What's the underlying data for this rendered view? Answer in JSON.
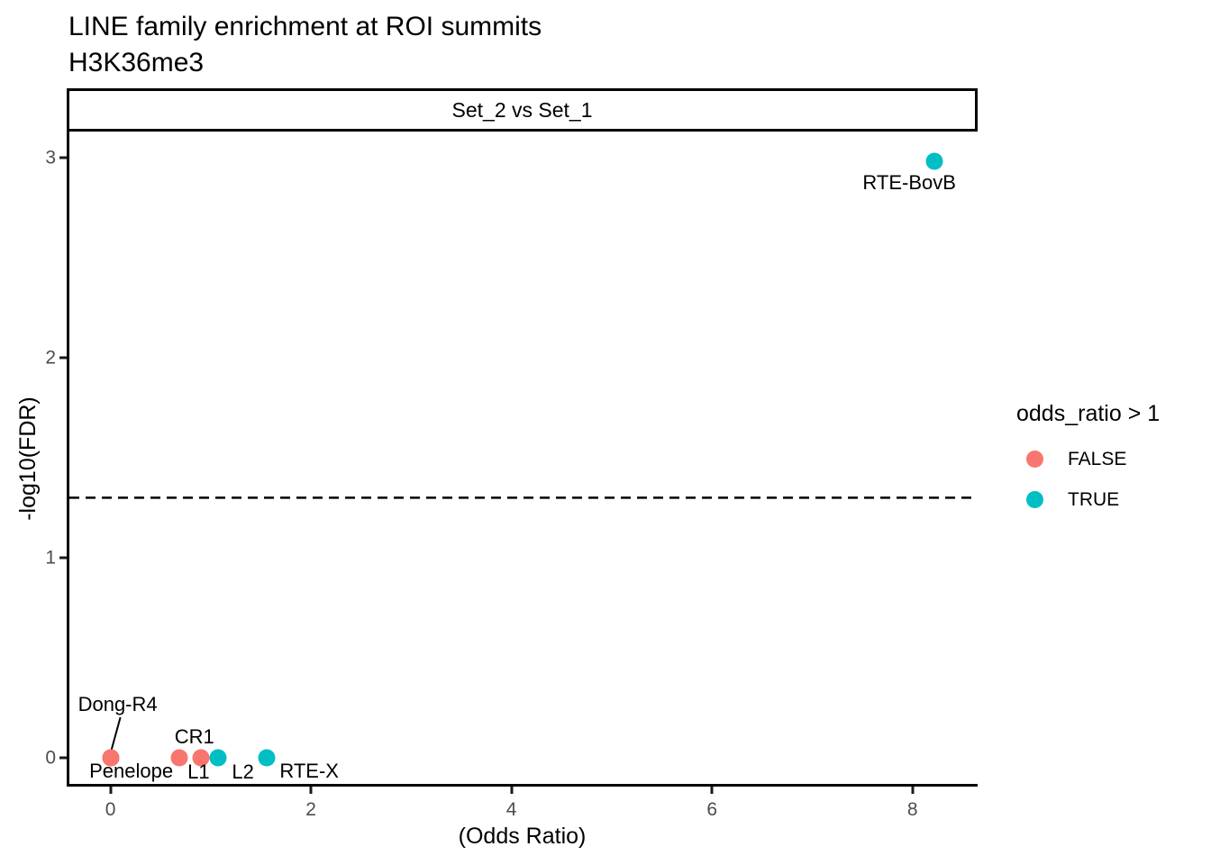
{
  "title": "LINE family enrichment at ROI summits",
  "subtitle": "H3K36me3",
  "facet_label": "Set_2 vs Set_1",
  "legend": {
    "title": "odds_ratio > 1",
    "items": [
      {
        "label": "FALSE",
        "color": "#F8766D"
      },
      {
        "label": "TRUE",
        "color": "#00BFC4"
      }
    ]
  },
  "axis": {
    "x_title": "(Odds Ratio)",
    "y_title": "-log10(FDR)",
    "tick_label_color": "#4D4D4D",
    "line_color": "#000000"
  },
  "chart_data": {
    "type": "scatter",
    "title": "LINE family enrichment at ROI summits",
    "subtitle": "H3K36me3",
    "facet": "Set_2 vs Set_1",
    "xlabel": "(Odds Ratio)",
    "ylabel": "-log10(FDR)",
    "xlim": [
      -0.41,
      8.65
    ],
    "ylim": [
      -0.13,
      3.13
    ],
    "x_ticks": [
      0,
      2,
      4,
      6,
      8
    ],
    "y_ticks": [
      0,
      1,
      2,
      3
    ],
    "grid": false,
    "legend_position": "right",
    "legend_title": "odds_ratio > 1",
    "threshold_line": {
      "y": 1.3,
      "style": "dashed",
      "color": "#000000"
    },
    "series": [
      {
        "name": "FALSE",
        "color": "#F8766D",
        "points": [
          {
            "label": "Dong-R4",
            "x": 0.0,
            "y": 0.0,
            "label_dx": 8,
            "label_dy": -59,
            "leader": {
              "from_dx": 11,
              "from_dy": -45,
              "to_dx": 0,
              "to_dy": -5
            }
          },
          {
            "label": "Penelope",
            "x": 0.0,
            "y": 0.0,
            "label_dx": 23,
            "label_dy": 15
          },
          {
            "label": "L1",
            "x": 0.69,
            "y": 0.0,
            "label_dx": 21,
            "label_dy": 16
          },
          {
            "label": "CR1",
            "x": 0.9,
            "y": 0.0,
            "label_dx": -7,
            "label_dy": -23
          }
        ]
      },
      {
        "name": "TRUE",
        "color": "#00BFC4",
        "points": [
          {
            "label": "L2",
            "x": 1.07,
            "y": 0.0,
            "label_dx": 28,
            "label_dy": 16
          },
          {
            "label": "RTE-X",
            "x": 1.56,
            "y": 0.0,
            "label_dx": 47,
            "label_dy": 15
          },
          {
            "label": "RTE-BovB",
            "x": 8.22,
            "y": 2.98,
            "label_dx": -28,
            "label_dy": 24
          }
        ]
      }
    ]
  }
}
